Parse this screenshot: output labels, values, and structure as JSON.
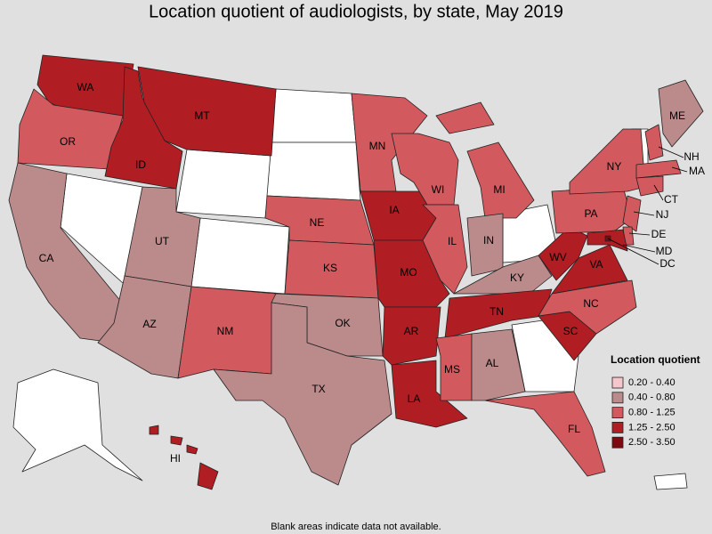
{
  "title": "Location quotient of audiologists, by state, May 2019",
  "legend": {
    "title": "Location quotient",
    "items": [
      {
        "label": "0.20 - 0.40",
        "color": "#f5c6cb"
      },
      {
        "label": "0.40 - 0.80",
        "color": "#bb8a8a"
      },
      {
        "label": "0.80 - 1.25",
        "color": "#d25a5e"
      },
      {
        "label": "1.25 - 2.50",
        "color": "#b01e24"
      },
      {
        "label": "2.50 - 3.50",
        "color": "#7c0a0e"
      }
    ]
  },
  "states": [
    {
      "label": "WA",
      "class": 3
    },
    {
      "label": "OR",
      "class": 2
    },
    {
      "label": "CA",
      "class": 1
    },
    {
      "label": "ID",
      "class": 3
    },
    {
      "label": "MT",
      "class": 3
    },
    {
      "label": "UT",
      "class": 1
    },
    {
      "label": "AZ",
      "class": 1
    },
    {
      "label": "NM",
      "class": 2
    },
    {
      "label": "NE",
      "class": 2
    },
    {
      "label": "KS",
      "class": 2
    },
    {
      "label": "OK",
      "class": 1
    },
    {
      "label": "TX",
      "class": 1
    },
    {
      "label": "MN",
      "class": 2
    },
    {
      "label": "IA",
      "class": 3
    },
    {
      "label": "MO",
      "class": 3
    },
    {
      "label": "AR",
      "class": 3
    },
    {
      "label": "LA",
      "class": 3
    },
    {
      "label": "WI",
      "class": 2
    },
    {
      "label": "IL",
      "class": 2
    },
    {
      "label": "MI",
      "class": 2
    },
    {
      "label": "IN",
      "class": 1
    },
    {
      "label": "KY",
      "class": 1
    },
    {
      "label": "TN",
      "class": 3
    },
    {
      "label": "MS",
      "class": 2
    },
    {
      "label": "AL",
      "class": 1
    },
    {
      "label": "FL",
      "class": 2
    },
    {
      "label": "SC",
      "class": 3
    },
    {
      "label": "NC",
      "class": 2
    },
    {
      "label": "VA",
      "class": 3
    },
    {
      "label": "WV",
      "class": 3
    },
    {
      "label": "PA",
      "class": 2
    },
    {
      "label": "NY",
      "class": 2
    },
    {
      "label": "ME",
      "class": 1
    },
    {
      "label": "NH",
      "class": 2
    },
    {
      "label": "MA",
      "class": 2
    },
    {
      "label": "CT",
      "class": 2
    },
    {
      "label": "NJ",
      "class": 2
    },
    {
      "label": "DE",
      "class": 2
    },
    {
      "label": "MD",
      "class": 3
    },
    {
      "label": "DC",
      "class": 4
    },
    {
      "label": "HI",
      "class": 3
    }
  ],
  "footnote": "Blank areas indicate data not available."
}
